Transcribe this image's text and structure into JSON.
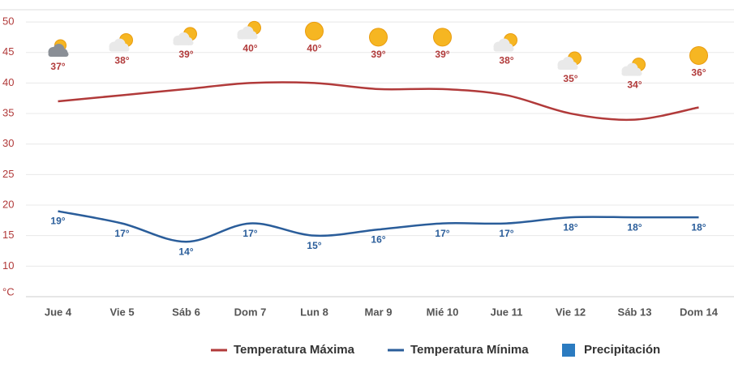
{
  "chart_data": {
    "type": "line",
    "categories": [
      "Jue 4",
      "Vie 5",
      "Sáb 6",
      "Dom 7",
      "Lun 8",
      "Mar 9",
      "Mié 10",
      "Jue 11",
      "Vie 12",
      "Sáb 13",
      "Dom 14"
    ],
    "series": [
      {
        "name": "Temperatura Máxima",
        "color": "#b13a3a",
        "values": [
          37,
          38,
          39,
          40,
          40,
          39,
          39,
          38,
          35,
          34,
          36
        ],
        "value_labels": [
          "37°",
          "38°",
          "39°",
          "40°",
          "40°",
          "39°",
          "39°",
          "38°",
          "35°",
          "34°",
          "36°"
        ]
      },
      {
        "name": "Temperatura Mínima",
        "color": "#2a5d9a",
        "values": [
          19,
          17,
          14,
          17,
          15,
          16,
          17,
          17,
          18,
          18,
          18
        ],
        "value_labels": [
          "19°",
          "17°",
          "14°",
          "17°",
          "15°",
          "16°",
          "17°",
          "17°",
          "18°",
          "18°",
          "18°"
        ]
      },
      {
        "name": "Precipitación",
        "color": "#2b7bc0",
        "values": [
          null,
          null,
          null,
          null,
          null,
          null,
          null,
          null,
          null,
          null,
          null
        ]
      }
    ],
    "ylim": [
      5,
      52
    ],
    "yticks": [
      {
        "value": 5,
        "label": "°C"
      },
      10,
      15,
      20,
      25,
      30,
      35,
      40,
      45,
      50
    ],
    "grid": true
  }
}
